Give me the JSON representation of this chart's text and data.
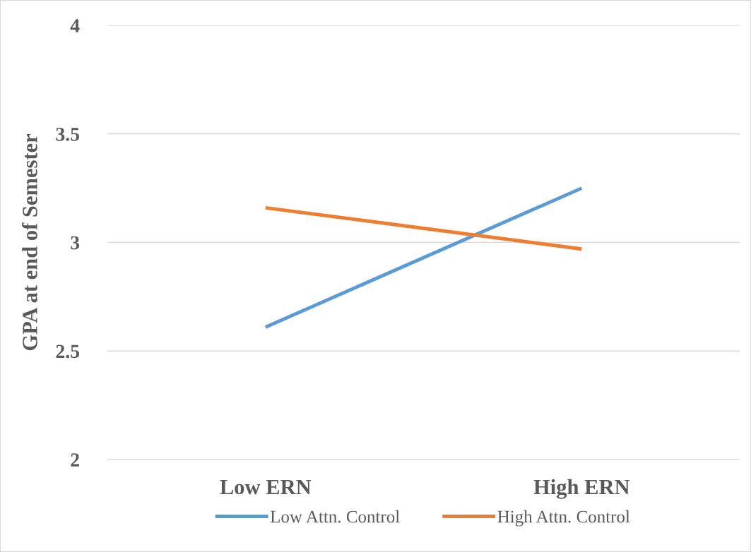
{
  "chart_data": {
    "type": "line",
    "ylabel": "GPA at end of Semester",
    "categories": [
      "Low ERN",
      "High ERN"
    ],
    "series": [
      {
        "name": "Low Attn. Control",
        "color": "#5b9bd5",
        "values": [
          2.61,
          3.25
        ]
      },
      {
        "name": "High Attn. Control",
        "color": "#ed7d31",
        "values": [
          3.16,
          2.97
        ]
      }
    ],
    "ylim": [
      2,
      4
    ],
    "yticks": [
      2,
      2.5,
      3,
      3.5,
      4
    ],
    "grid": "y",
    "legend": "bottom",
    "marker": "none",
    "line_style": "solid"
  }
}
